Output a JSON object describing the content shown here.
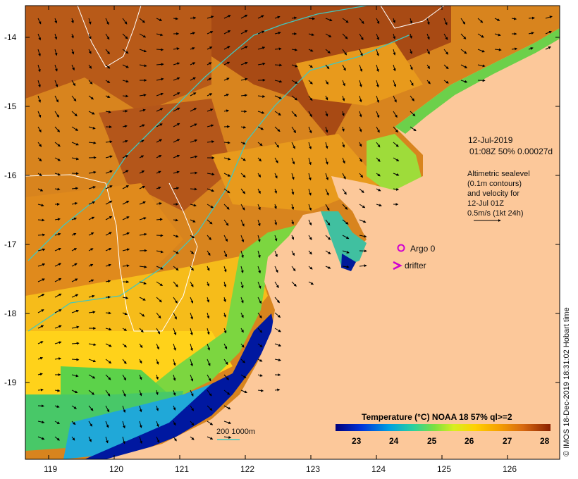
{
  "axes": {
    "lat_labels": [
      "-14",
      "-15",
      "-16",
      "-17",
      "-18",
      "-19"
    ],
    "lon_labels": [
      "119",
      "120",
      "121",
      "122",
      "123",
      "124",
      "125",
      "126"
    ]
  },
  "info": {
    "date": "12-Jul-2019",
    "time_line": "01:08Z  50% 0.00027d",
    "altimetric_lines": [
      "Altimetric sealevel",
      "(0.1m contours)",
      "and velocity for",
      "12-Jul 01Z",
      "0.5m/s (1kt 24h)"
    ]
  },
  "markers": {
    "argo_label": "Argo 0",
    "drifter_label": "drifter"
  },
  "colorbar": {
    "title": "Temperature (°C) NOAA 18 57% ql>=2",
    "ticks": [
      "23",
      "24",
      "25",
      "26",
      "27",
      "28"
    ]
  },
  "depth_legend": "200  1000m",
  "credit": "© IMOS 18-Dec-2019 18:31:02 Hobart time",
  "colors": {
    "land": "#fcc89a",
    "warm": "#c96a1c",
    "hot": "#9a3e10",
    "mid": "#f0a018",
    "cool": "#ffd21a",
    "green": "#5cd24a",
    "blue": "#001a9a",
    "contour_cyan": "#40c8c0",
    "argo": "#d000d0"
  }
}
